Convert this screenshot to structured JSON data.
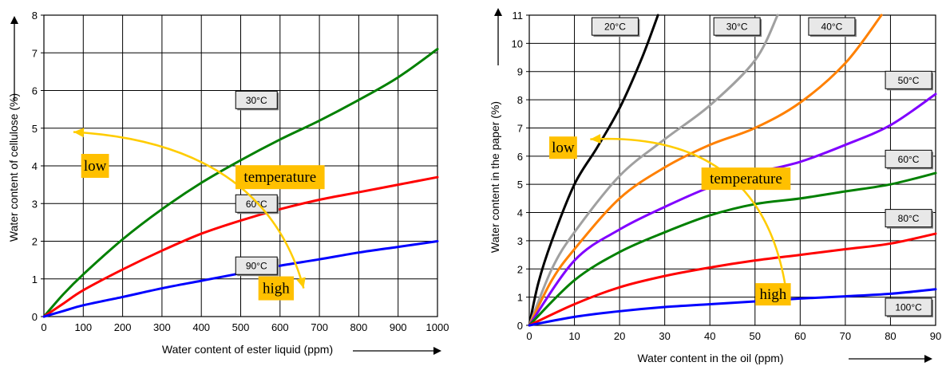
{
  "chart_data": [
    {
      "type": "line",
      "xlabel": "Water content of ester liquid (ppm)",
      "ylabel": "Water content of cellulose (%)",
      "xlim": [
        0,
        1000
      ],
      "ylim": [
        0,
        8
      ],
      "xticks": [
        "0",
        "100",
        "200",
        "300",
        "400",
        "500",
        "600",
        "700",
        "800",
        "900",
        "1000"
      ],
      "yticks": [
        "0",
        "1",
        "2",
        "3",
        "4",
        "5",
        "6",
        "7",
        "8"
      ],
      "grid": true,
      "series": [
        {
          "name": "30°C",
          "color": "#008000",
          "x": [
            0,
            50,
            100,
            200,
            300,
            400,
            500,
            600,
            700,
            800,
            900,
            1000
          ],
          "y": [
            0,
            0.6,
            1.12,
            2.05,
            2.85,
            3.55,
            4.15,
            4.7,
            5.2,
            5.75,
            6.35,
            7.1
          ]
        },
        {
          "name": "60°C",
          "color": "#ff0000",
          "x": [
            0,
            50,
            100,
            200,
            300,
            400,
            500,
            600,
            700,
            800,
            900,
            1000
          ],
          "y": [
            0,
            0.35,
            0.7,
            1.25,
            1.75,
            2.2,
            2.55,
            2.85,
            3.1,
            3.3,
            3.5,
            3.7
          ]
        },
        {
          "name": "90°C",
          "color": "#0000ff",
          "x": [
            0,
            50,
            100,
            200,
            300,
            400,
            500,
            600,
            700,
            800,
            900,
            1000
          ],
          "y": [
            0,
            0.15,
            0.3,
            0.52,
            0.75,
            0.95,
            1.15,
            1.35,
            1.52,
            1.7,
            1.85,
            2.0
          ]
        }
      ],
      "labels": [
        {
          "text": "30°C",
          "x": 540,
          "y": 5.75
        },
        {
          "text": "60°C",
          "x": 540,
          "y": 3.0
        },
        {
          "text": "90°C",
          "x": 540,
          "y": 1.35
        }
      ],
      "annotations": [
        {
          "text": "low",
          "x": 130,
          "y": 4.0
        },
        {
          "text": "temperature",
          "x": 600,
          "y": 3.7
        },
        {
          "text": "high",
          "x": 590,
          "y": 0.75
        }
      ]
    },
    {
      "type": "line",
      "xlabel": "Water content in the oil (ppm)",
      "ylabel": "Water content in the paper (%)",
      "xlim": [
        0,
        90
      ],
      "ylim": [
        0,
        11
      ],
      "xticks": [
        "0",
        "10",
        "20",
        "30",
        "40",
        "50",
        "60",
        "70",
        "80",
        "90"
      ],
      "yticks": [
        "0",
        "1",
        "2",
        "3",
        "4",
        "5",
        "6",
        "7",
        "8",
        "9",
        "10",
        "11"
      ],
      "grid": true,
      "series": [
        {
          "name": "20°C",
          "color": "#000000",
          "x": [
            0,
            2,
            5,
            10,
            15,
            20,
            25,
            28.5
          ],
          "y": [
            0,
            1.5,
            3.0,
            5.0,
            6.3,
            7.7,
            9.5,
            11
          ]
        },
        {
          "name": "30°C",
          "color": "#a0a0a0",
          "x": [
            0,
            5,
            10,
            20,
            30,
            40,
            50,
            55
          ],
          "y": [
            0,
            2.0,
            3.3,
            5.3,
            6.6,
            7.8,
            9.4,
            11
          ]
        },
        {
          "name": "40°C",
          "color": "#ff8000",
          "x": [
            0,
            5,
            10,
            20,
            30,
            40,
            50,
            60,
            70,
            78
          ],
          "y": [
            0,
            1.6,
            2.7,
            4.5,
            5.6,
            6.4,
            7.0,
            7.9,
            9.3,
            11
          ]
        },
        {
          "name": "50°C",
          "color": "#8000ff",
          "x": [
            0,
            10,
            20,
            30,
            40,
            50,
            60,
            70,
            80,
            90
          ],
          "y": [
            0,
            2.3,
            3.4,
            4.2,
            4.9,
            5.4,
            5.8,
            6.4,
            7.1,
            8.2
          ]
        },
        {
          "name": "60°C",
          "color": "#008000",
          "x": [
            0,
            10,
            20,
            30,
            40,
            50,
            60,
            70,
            80,
            90
          ],
          "y": [
            0,
            1.6,
            2.6,
            3.3,
            3.9,
            4.3,
            4.5,
            4.75,
            5.0,
            5.4
          ]
        },
        {
          "name": "80°C",
          "color": "#ff0000",
          "x": [
            0,
            10,
            20,
            30,
            40,
            50,
            60,
            70,
            80,
            90
          ],
          "y": [
            0,
            0.75,
            1.35,
            1.75,
            2.05,
            2.3,
            2.5,
            2.7,
            2.9,
            3.25
          ]
        },
        {
          "name": "100°C",
          "color": "#0000ff",
          "x": [
            0,
            10,
            20,
            30,
            40,
            50,
            60,
            70,
            80,
            90
          ],
          "y": [
            0,
            0.3,
            0.5,
            0.65,
            0.75,
            0.85,
            0.95,
            1.03,
            1.12,
            1.28
          ]
        }
      ],
      "labels": [
        {
          "text": "20°C",
          "x": 19,
          "y": 10.6
        },
        {
          "text": "30°C",
          "x": 46,
          "y": 10.6
        },
        {
          "text": "40°C",
          "x": 67,
          "y": 10.6
        },
        {
          "text": "50°C",
          "x": 84,
          "y": 8.7
        },
        {
          "text": "60°C",
          "x": 84,
          "y": 5.9
        },
        {
          "text": "80°C",
          "x": 84,
          "y": 3.8
        },
        {
          "text": "100°C",
          "x": 84,
          "y": 0.65
        }
      ],
      "annotations": [
        {
          "text": "low",
          "x": 7.5,
          "y": 6.3
        },
        {
          "text": "temperature",
          "x": 48,
          "y": 5.2
        },
        {
          "text": "high",
          "x": 54,
          "y": 1.1
        }
      ]
    }
  ]
}
